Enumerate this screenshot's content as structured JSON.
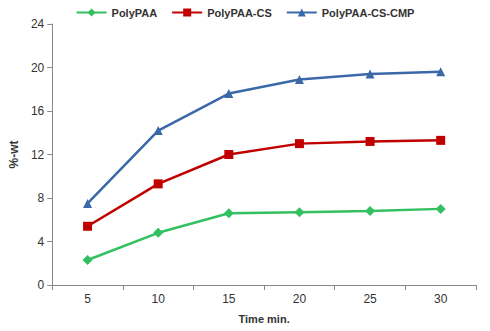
{
  "chart_data": {
    "type": "line",
    "x_label": "Time min.",
    "y_label": "%-wt",
    "categories": [
      "5",
      "10",
      "15",
      "20",
      "25",
      "30"
    ],
    "series": [
      {
        "name": "PolyPAA",
        "color": "#33c060",
        "marker": "diamond",
        "values": [
          2.3,
          4.8,
          6.6,
          6.7,
          6.8,
          7.0
        ]
      },
      {
        "name": "PolyPAA-CS",
        "color": "#c00000",
        "marker": "square",
        "values": [
          5.4,
          9.3,
          12.0,
          13.0,
          13.2,
          13.3
        ]
      },
      {
        "name": "PolyPAA-CS-CMP",
        "color": "#3a68a8",
        "marker": "triangle",
        "values": [
          7.5,
          14.2,
          17.6,
          18.9,
          19.4,
          19.6
        ]
      }
    ],
    "ylim": [
      0,
      24
    ],
    "yticks": [
      0,
      4,
      8,
      12,
      16,
      20,
      24
    ],
    "grid": false,
    "legend": "top"
  }
}
